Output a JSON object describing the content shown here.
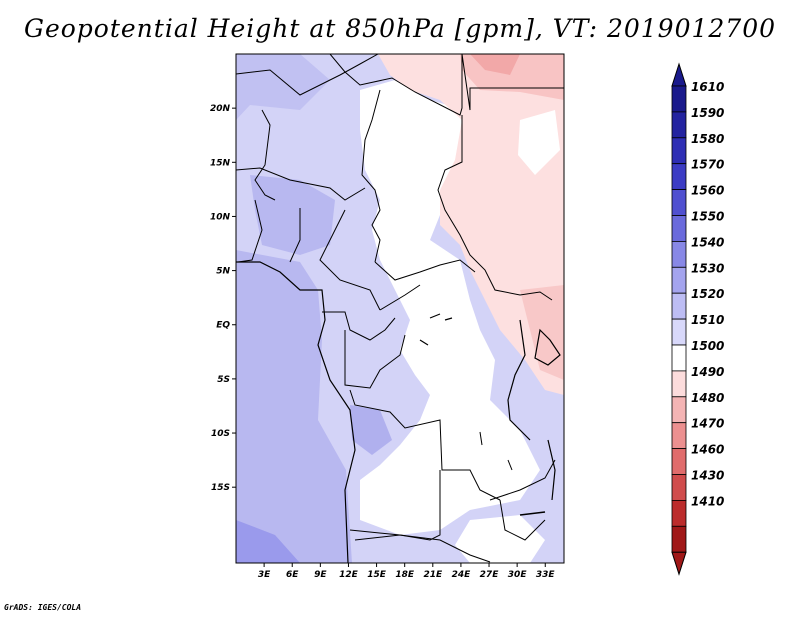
{
  "title": "Geopotential Height at 850hPa [gpm], VT: 2019012700",
  "footer": "GrADS: IGES/COLA",
  "map": {
    "lon_range": [
      0,
      35
    ],
    "lat_range": [
      -22,
      25
    ],
    "lon_ticks": [
      "3E",
      "6E",
      "9E",
      "12E",
      "15E",
      "18E",
      "21E",
      "24E",
      "27E",
      "30E",
      "33E"
    ],
    "lat_ticks": [
      "20N",
      "15N",
      "10N",
      "5N",
      "EQ",
      "5S",
      "10S",
      "15S"
    ]
  },
  "colorbar": {
    "labels": [
      "1610",
      "1590",
      "1580",
      "1570",
      "1560",
      "1550",
      "1540",
      "1530",
      "1520",
      "1510",
      "1500",
      "1490",
      "1480",
      "1470",
      "1460",
      "1430",
      "1410"
    ],
    "colors": [
      "#1a1a8c",
      "#2323a0",
      "#2e2eb4",
      "#3c3cc4",
      "#5050d0",
      "#6a6adc",
      "#8888e6",
      "#a4a4ee",
      "#bdbdf4",
      "#d8d8fa",
      "#ffffff",
      "#fcdcdc",
      "#f4b4b4",
      "#ec9090",
      "#e06c6c",
      "#d04c4c",
      "#bc2c2c",
      "#a01818"
    ],
    "top_arrow_color": "#1a1a8c",
    "bottom_arrow_color": "#a01818"
  }
}
